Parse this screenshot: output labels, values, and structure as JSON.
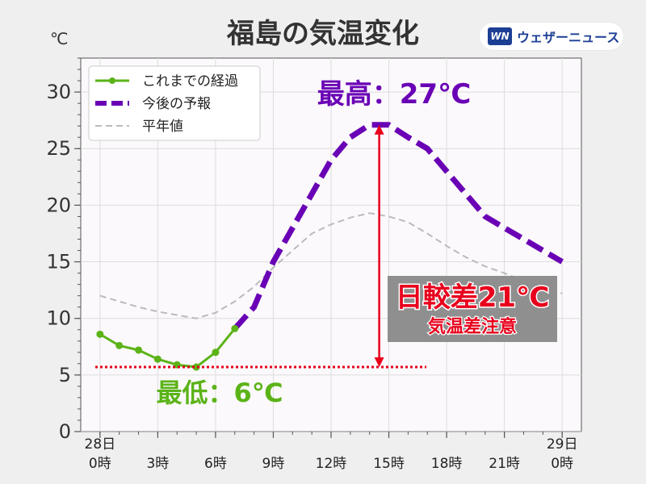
{
  "title": "福島の気温変化",
  "unit": "℃",
  "brand": {
    "logo": "WN",
    "name": "ウェザーニュース"
  },
  "chart_data": {
    "type": "line",
    "ylim": [
      0,
      33
    ],
    "xlim": [
      -1,
      25
    ],
    "yticks": [
      0,
      5,
      10,
      15,
      20,
      25,
      30
    ],
    "xticks": [
      {
        "x": 0,
        "top": "28日",
        "bottom": "0時"
      },
      {
        "x": 3,
        "top": "",
        "bottom": "3時"
      },
      {
        "x": 6,
        "top": "",
        "bottom": "6時"
      },
      {
        "x": 9,
        "top": "",
        "bottom": "9時"
      },
      {
        "x": 12,
        "top": "",
        "bottom": "12時"
      },
      {
        "x": 15,
        "top": "",
        "bottom": "15時"
      },
      {
        "x": 18,
        "top": "",
        "bottom": "18時"
      },
      {
        "x": 21,
        "top": "",
        "bottom": "21時"
      },
      {
        "x": 24,
        "top": "29日",
        "bottom": "0時"
      }
    ],
    "grid": true,
    "legend_position": "top-left",
    "series": [
      {
        "name": "これまでの経過",
        "style": "solid-markers",
        "color": "#5bb318",
        "x": [
          0,
          1,
          2,
          3,
          4,
          5,
          6,
          7
        ],
        "y": [
          8.6,
          7.6,
          7.2,
          6.4,
          5.9,
          5.7,
          7.0,
          9.1
        ]
      },
      {
        "name": "今後の予報",
        "style": "thick-dashed",
        "color": "#6a00b5",
        "x": [
          7,
          8,
          9,
          10,
          11,
          12,
          13,
          14,
          15,
          16,
          17,
          18,
          19,
          20,
          21,
          22,
          23,
          24
        ],
        "y": [
          9.1,
          11.0,
          15.0,
          18.0,
          21.0,
          24.0,
          26.0,
          27.1,
          27.1,
          26.0,
          25.0,
          23.0,
          21.0,
          19.0,
          18.0,
          17.0,
          16.0,
          15.0
        ]
      },
      {
        "name": "平年値",
        "style": "thin-dashed",
        "color": "#bbbbbb",
        "x": [
          0,
          1,
          2,
          3,
          4,
          5,
          6,
          7,
          8,
          9,
          10,
          11,
          12,
          13,
          14,
          15,
          16,
          17,
          18,
          19,
          20,
          21,
          22,
          23,
          24
        ],
        "y": [
          12.0,
          11.5,
          11.0,
          10.6,
          10.3,
          10.0,
          10.5,
          11.5,
          12.8,
          14.5,
          16.0,
          17.5,
          18.3,
          18.9,
          19.3,
          19.0,
          18.5,
          17.5,
          16.4,
          15.4,
          14.6,
          14.0,
          13.3,
          12.7,
          12.2
        ]
      }
    ],
    "annotations": {
      "max": {
        "label": "最高：27℃",
        "x": 14.5,
        "y": 27.1
      },
      "min": {
        "label": "最低：6℃",
        "y": 5.7
      },
      "diff": {
        "label": "日較差21℃",
        "sub": "気温差注意"
      }
    }
  }
}
